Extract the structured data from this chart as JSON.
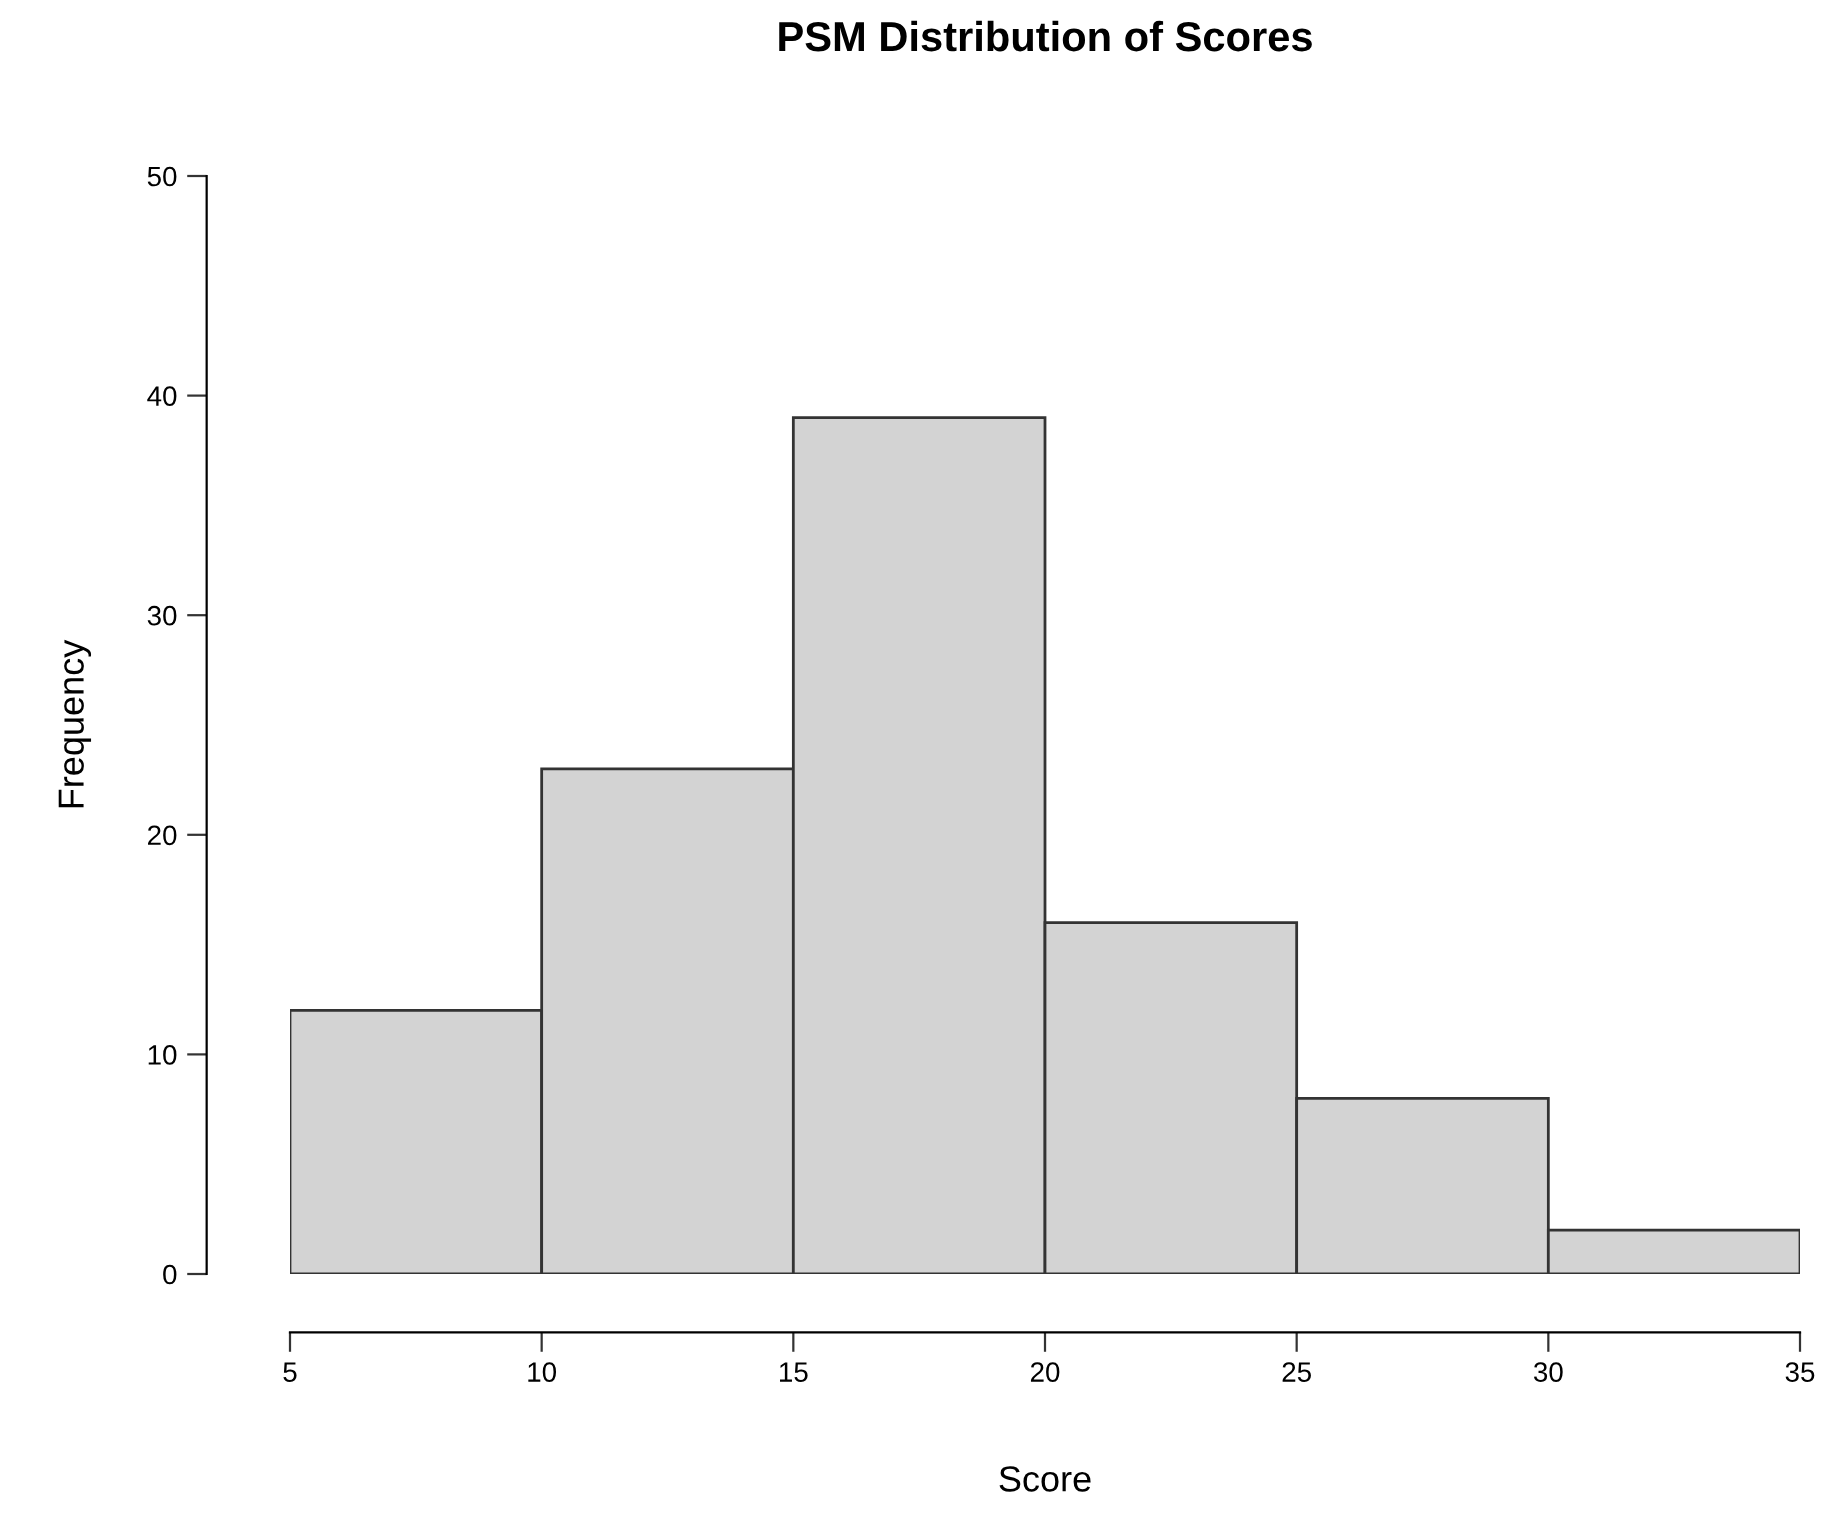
{
  "chart_data": {
    "type": "histogram",
    "title": "PSM Distribution of Scores",
    "xlabel": "Score",
    "ylabel": "Frequency",
    "bins": [
      5,
      10,
      15,
      20,
      25,
      30,
      35
    ],
    "values": [
      12,
      23,
      39,
      16,
      8,
      2
    ],
    "color": "#d3d3d3",
    "xlim": [
      5,
      35
    ],
    "xticks": [
      5,
      10,
      15,
      20,
      25,
      30,
      35
    ],
    "ylim": [
      0,
      50
    ],
    "yticks": [
      0,
      10,
      20,
      30,
      40,
      50
    ],
    "grid": false,
    "legend": false
  }
}
